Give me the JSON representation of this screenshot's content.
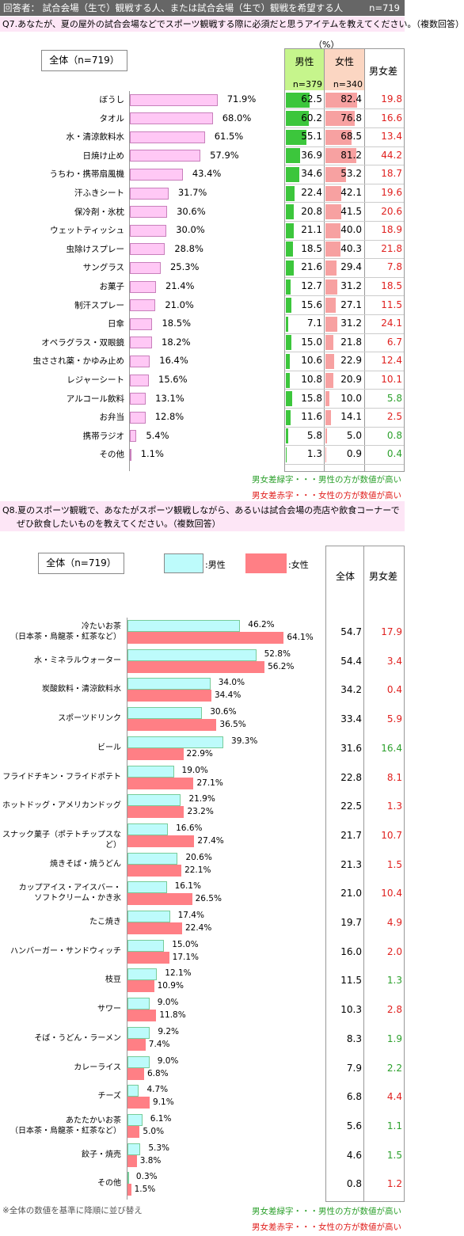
{
  "header": {
    "respondent": "回答者： 試合会場（生で）観戦する人、または試合会場（生で）観戦を希望する人",
    "n_total": "n=719"
  },
  "colors": {
    "q7_overall_bar": "#ffc8f5",
    "male_bar": "#3cc63c",
    "female_bar": "#f7a1a1",
    "male_head": "#c6f58c",
    "female_head": "#fbd6c2",
    "q8_male": "#bdfbfb",
    "q8_female": "#ff7f85",
    "diff_male": "#2ca02c",
    "diff_female": "#e0201e"
  },
  "q7": {
    "question": "Q7.あなたが、夏の屋外の試合会場などでスポーツ観戦する際に必須だと思うアイテムを教えてください。（複数回答）",
    "overall_label": "全体（n=719）",
    "unit": "（%）",
    "male_head": "男性",
    "male_n": "n=379",
    "female_head": "女性",
    "female_n": "n=340",
    "diff_head": "男女差",
    "legend_green": "男女差緑字・・・男性の方が数値が高い",
    "legend_red": "男女差赤字・・・女性の方が数値が高い"
  },
  "q8": {
    "question_line1": "Q8.夏のスポーツ観戦で、あなたがスポーツ観戦しながら、あるいは試合会場の売店や飲食コーナーで",
    "question_line2": "ぜひ飲食したいものを教えてください。（複数回答）",
    "overall_label": "全体（n=719）",
    "legend_male": ":男性",
    "legend_female": ":女性",
    "total_head": "全体",
    "diff_head": "男女差",
    "sort_note": "※全体の数値を基準に降順に並び替え",
    "legend_green": "男女差緑字・・・男性の方が数値が高い",
    "legend_red": "男女差赤字・・・女性の方が数値が高い"
  },
  "chart_data": [
    {
      "type": "bar",
      "categories": [
        "ぼうし",
        "タオル",
        "水・清涼飲料水",
        "日焼け止め",
        "うちわ・携帯扇風機",
        "汗ふきシート",
        "保冷剤・氷枕",
        "ウェットティッシュ",
        "虫除けスプレー",
        "サングラス",
        "お菓子",
        "制汗スプレー",
        "日傘",
        "オペラグラス・双眼鏡",
        "虫さされ薬・かゆみ止め",
        "レジャーシート",
        "アルコール飲料",
        "お弁当",
        "携帯ラジオ",
        "その他"
      ],
      "series": [
        {
          "name": "全体（n=719）",
          "values": [
            71.9,
            68.0,
            61.5,
            57.9,
            43.4,
            31.7,
            30.6,
            30.0,
            28.8,
            25.3,
            21.4,
            21.0,
            18.5,
            18.2,
            16.4,
            15.6,
            13.1,
            12.8,
            5.4,
            1.1
          ]
        },
        {
          "name": "男性",
          "values": [
            62.5,
            60.2,
            55.1,
            36.9,
            34.6,
            22.4,
            20.8,
            21.1,
            18.5,
            21.6,
            12.7,
            15.6,
            7.1,
            15.0,
            10.6,
            10.8,
            15.8,
            11.6,
            5.8,
            1.3
          ]
        },
        {
          "name": "女性",
          "values": [
            82.4,
            76.8,
            68.5,
            81.2,
            53.2,
            42.1,
            41.5,
            40.0,
            40.3,
            29.4,
            31.2,
            27.1,
            31.2,
            21.8,
            22.9,
            20.9,
            10.0,
            14.1,
            5.0,
            0.9
          ]
        },
        {
          "name": "男女差",
          "values": [
            19.8,
            16.6,
            13.4,
            44.2,
            18.7,
            19.6,
            20.6,
            18.9,
            21.8,
            7.8,
            18.5,
            11.5,
            24.1,
            6.7,
            12.4,
            10.1,
            5.8,
            2.5,
            0.8,
            0.4
          ]
        }
      ],
      "diff_color": [
        "red",
        "red",
        "red",
        "red",
        "red",
        "red",
        "red",
        "red",
        "red",
        "red",
        "red",
        "red",
        "red",
        "red",
        "red",
        "red",
        "green",
        "red",
        "green",
        "green"
      ],
      "ylim": [
        0,
        100
      ]
    },
    {
      "type": "bar",
      "categories": [
        "冷たいお茶|（日本茶・烏龍茶・紅茶など）",
        "水・ミネラルウォーター",
        "炭酸飲料・清涼飲料水",
        "スポーツドリンク",
        "ビール",
        "フライドチキン・フライドポテト",
        "ホットドッグ・アメリカンドッグ",
        "スナック菓子（ポテトチップスなど）",
        "焼きそば・焼うどん",
        "カップアイス・アイスバー・|ソフトクリーム・かき氷",
        "たこ焼き",
        "ハンバーガー・サンドウィッチ",
        "枝豆",
        "サワー",
        "そば・うどん・ラーメン",
        "カレーライス",
        "チーズ",
        "あたたかいお茶|（日本茶・烏龍茶・紅茶など）",
        "餃子・焼売",
        "その他"
      ],
      "series": [
        {
          "name": "男性",
          "values": [
            46.2,
            52.8,
            34.0,
            30.6,
            39.3,
            19.0,
            21.9,
            16.6,
            20.6,
            16.1,
            17.4,
            15.0,
            12.1,
            9.0,
            9.2,
            9.0,
            4.7,
            6.1,
            5.3,
            0.3
          ]
        },
        {
          "name": "女性",
          "values": [
            64.1,
            56.2,
            34.4,
            36.5,
            22.9,
            27.1,
            23.2,
            27.4,
            22.1,
            26.5,
            22.4,
            17.1,
            10.9,
            11.8,
            7.4,
            6.8,
            9.1,
            5.0,
            3.8,
            1.5
          ]
        },
        {
          "name": "全体",
          "values": [
            54.7,
            54.4,
            34.2,
            33.4,
            31.6,
            22.8,
            22.5,
            21.7,
            21.3,
            21.0,
            19.7,
            16.0,
            11.5,
            10.3,
            8.3,
            7.9,
            6.8,
            5.6,
            4.6,
            0.8
          ]
        },
        {
          "name": "男女差",
          "values": [
            17.9,
            3.4,
            0.4,
            5.9,
            16.4,
            8.1,
            1.3,
            10.7,
            1.5,
            10.4,
            4.9,
            2.0,
            1.3,
            2.8,
            1.9,
            2.2,
            4.4,
            1.1,
            1.5,
            1.2
          ]
        }
      ],
      "diff_color": [
        "red",
        "red",
        "red",
        "red",
        "green",
        "red",
        "red",
        "red",
        "red",
        "red",
        "red",
        "red",
        "green",
        "red",
        "green",
        "green",
        "red",
        "green",
        "green",
        "red"
      ],
      "ylim": [
        0,
        100
      ]
    }
  ]
}
